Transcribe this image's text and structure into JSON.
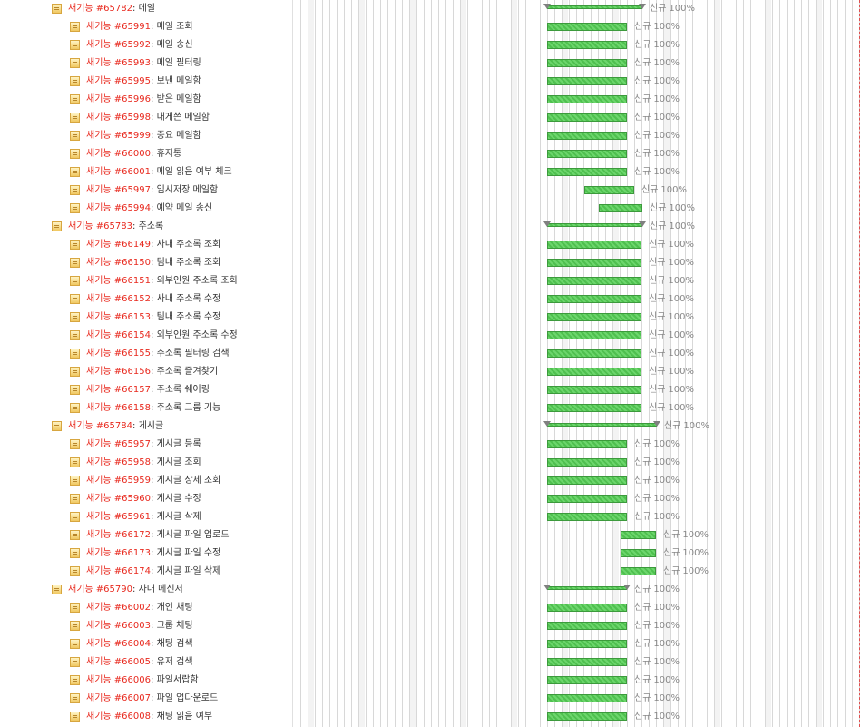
{
  "kind_label": "새기능",
  "status_label": "신규",
  "tasks": [
    {
      "id": "#65782",
      "name": "메일",
      "parent": true,
      "pct": "100%"
    },
    {
      "id": "#65991",
      "name": "메일 조회",
      "pct": "100%"
    },
    {
      "id": "#65992",
      "name": "메일 송신",
      "pct": "100%"
    },
    {
      "id": "#65993",
      "name": "메일 필터링",
      "pct": "100%"
    },
    {
      "id": "#65995",
      "name": "보낸 메일함",
      "pct": "100%"
    },
    {
      "id": "#65996",
      "name": "받은 메일함",
      "pct": "100%"
    },
    {
      "id": "#65998",
      "name": "내게쓴 메일함",
      "pct": "100%"
    },
    {
      "id": "#65999",
      "name": "중요 메일함",
      "pct": "100%"
    },
    {
      "id": "#66000",
      "name": "휴지통",
      "pct": "100%"
    },
    {
      "id": "#66001",
      "name": "메일 읽음 여부 체크",
      "pct": "100%"
    },
    {
      "id": "#65997",
      "name": "임시저장 메일함",
      "pct": "100%"
    },
    {
      "id": "#65994",
      "name": "예약 메일 송신",
      "pct": "100%"
    },
    {
      "id": "#65783",
      "name": "주소록",
      "parent": true,
      "pct": "100%"
    },
    {
      "id": "#66149",
      "name": "사내 주소록 조회",
      "pct": "100%"
    },
    {
      "id": "#66150",
      "name": "팀내 주소록 조회",
      "pct": "100%"
    },
    {
      "id": "#66151",
      "name": "외부인원 주소록 조회",
      "pct": "100%"
    },
    {
      "id": "#66152",
      "name": "사내 주소록 수정",
      "pct": "100%"
    },
    {
      "id": "#66153",
      "name": "팀내 주소록 수정",
      "pct": "100%"
    },
    {
      "id": "#66154",
      "name": "외부인원 주소록 수정",
      "pct": "100%"
    },
    {
      "id": "#66155",
      "name": "주소록 필터링 검색",
      "pct": "100%"
    },
    {
      "id": "#66156",
      "name": "주소록 즐겨찾기",
      "pct": "100%"
    },
    {
      "id": "#66157",
      "name": "주소록 쉐어링",
      "pct": "100%"
    },
    {
      "id": "#66158",
      "name": "주소록 그룹 기능",
      "pct": "100%"
    },
    {
      "id": "#65784",
      "name": "게시글",
      "parent": true,
      "pct": "100%"
    },
    {
      "id": "#65957",
      "name": "게시글 등록",
      "pct": "100%"
    },
    {
      "id": "#65958",
      "name": "게시글 조회",
      "pct": "100%"
    },
    {
      "id": "#65959",
      "name": "게시글 상세 조회",
      "pct": "100%"
    },
    {
      "id": "#65960",
      "name": "게시글 수정",
      "pct": "100%"
    },
    {
      "id": "#65961",
      "name": "게시글 삭제",
      "pct": "100%"
    },
    {
      "id": "#66172",
      "name": "게시글 파일 업로드",
      "pct": "100%"
    },
    {
      "id": "#66173",
      "name": "게시글 파일 수정",
      "pct": "100%"
    },
    {
      "id": "#66174",
      "name": "게시글 파일 삭제",
      "pct": "100%"
    },
    {
      "id": "#65790",
      "name": "사내 메신저",
      "parent": true,
      "pct": "100%"
    },
    {
      "id": "#66002",
      "name": "개인 채팅",
      "pct": "100%"
    },
    {
      "id": "#66003",
      "name": "그룹 채팅",
      "pct": "100%"
    },
    {
      "id": "#66004",
      "name": "채팅 검색",
      "pct": "100%"
    },
    {
      "id": "#66005",
      "name": "유저 검색",
      "pct": "100%"
    },
    {
      "id": "#66006",
      "name": "파일서랍함",
      "pct": "100%"
    },
    {
      "id": "#66007",
      "name": "파일 업다운로드",
      "pct": "100%"
    },
    {
      "id": "#66008",
      "name": "채팅 읽음 여부",
      "pct": "100%"
    }
  ],
  "colors": {
    "kind_text": "#e8291e",
    "bar_fill": "#5ccb5c",
    "bar_border": "#3c9a3c",
    "parent_marker": "#808080",
    "label_text": "#888888",
    "today_line": "#e05050"
  }
}
